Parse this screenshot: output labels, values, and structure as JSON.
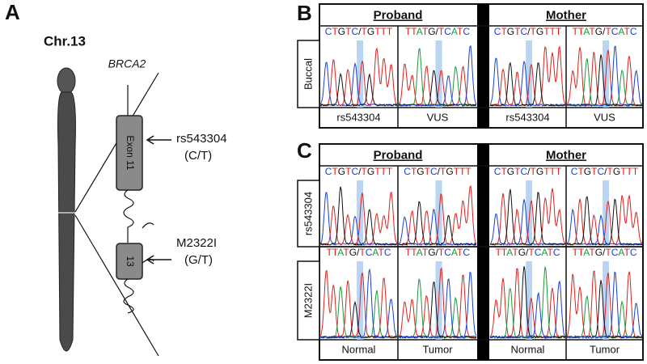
{
  "panel_a": {
    "label": "A",
    "chromosome": "Chr.13",
    "gene": "BRCA2",
    "exons": [
      "Exon 11",
      "13"
    ],
    "variants": [
      {
        "name": "rs543304",
        "change": "(C/T)"
      },
      {
        "name": "M2322I",
        "change": "(G/T)"
      }
    ]
  },
  "panel_b": {
    "label": "B",
    "groups": [
      "Proband",
      "Mother"
    ],
    "rows": [
      {
        "label": "Buccal",
        "sequences": [
          "CTGTC/TGTTT",
          "TTATG/TCATC",
          "CTGTC/TGTTT",
          "TTATG/TCATC"
        ]
      }
    ],
    "column_labels": [
      "rs543304",
      "VUS",
      "rs543304",
      "VUS"
    ]
  },
  "panel_c": {
    "label": "C",
    "groups": [
      "Proband",
      "Mother"
    ],
    "rows": [
      {
        "label": "rs543304",
        "sequences": [
          "CTGTC/TGTTT",
          "CTGTC/TGTTT",
          "CTGTC/TGTTT",
          "CTGTC/TGTTT"
        ]
      },
      {
        "label": "M2322I",
        "sequences": [
          "TTATG/TCATC",
          "TTATG/TCATC",
          "TTATG/TCATC",
          "TTATG/TCATC"
        ]
      }
    ],
    "column_labels": [
      "Normal",
      "Tumor",
      "Normal",
      "Tumor"
    ]
  },
  "base_colors": {
    "C": "#1a3fd6",
    "T": "#e0201c",
    "G": "#111111",
    "A": "#1a9a3a",
    "/": "#111111"
  }
}
